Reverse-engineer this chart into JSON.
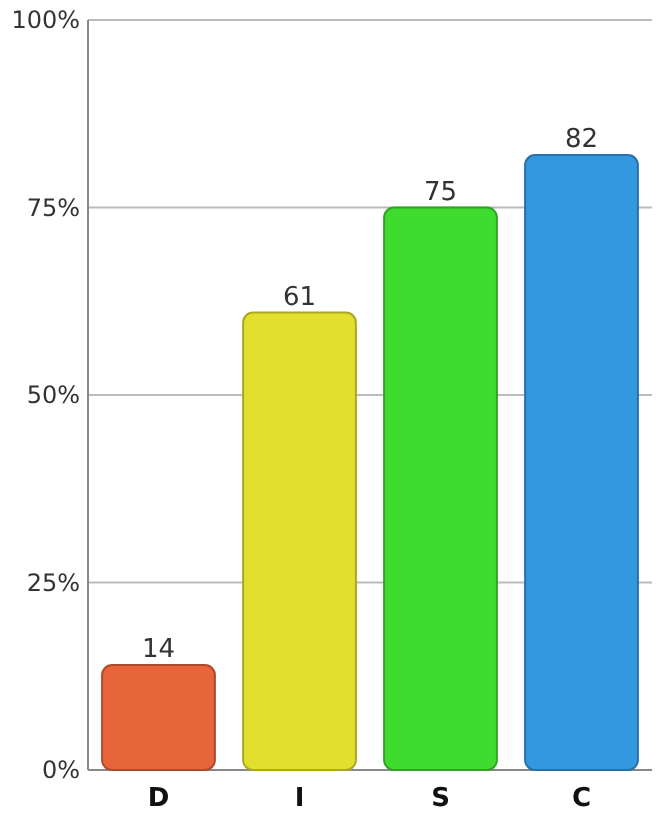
{
  "chart_data": {
    "type": "bar",
    "categories": [
      "D",
      "I",
      "S",
      "C"
    ],
    "values": [
      14,
      61,
      75,
      82
    ],
    "colors": [
      "#e8643a",
      "#e2df2e",
      "#3fdc2f",
      "#3398e0"
    ],
    "ylim": [
      0,
      100
    ],
    "yticks": [
      {
        "value": 0,
        "label": "0%"
      },
      {
        "value": 25,
        "label": "25%"
      },
      {
        "value": 50,
        "label": "50%"
      },
      {
        "value": 75,
        "label": "75%"
      },
      {
        "value": 100,
        "label": "100%"
      }
    ],
    "grid": "y",
    "data_labels": true
  }
}
